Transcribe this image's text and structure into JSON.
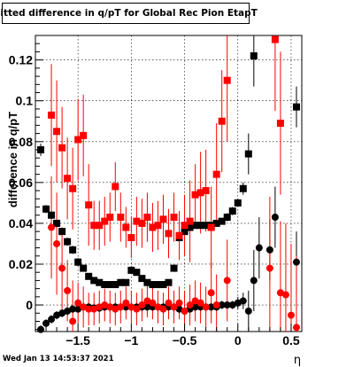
{
  "chart_data": {
    "type": "scatter",
    "title": "Fitted difference in q/pT for Global Rec Pion EtapT",
    "xlabel": "η",
    "ylabel": "difference in q/pT",
    "xlim": [
      -1.9,
      0.6
    ],
    "ylim": [
      -0.013,
      0.132
    ],
    "x_ticks": [
      -1.5,
      -1,
      -0.5,
      0,
      0.5
    ],
    "x_tick_labels": [
      "−1.5",
      "−1",
      "−0.5",
      "0",
      "0.5"
    ],
    "y_ticks": [
      0,
      0.02,
      0.04,
      0.06,
      0.08,
      0.1,
      0.12
    ],
    "y_tick_labels": [
      "0",
      "0.02",
      "0.04",
      "0.06",
      "0.08",
      "0.1",
      "0.12"
    ],
    "grid": true,
    "series": [
      {
        "color": "#000000",
        "marker": "square",
        "x": [
          -1.85,
          -1.8,
          -1.75,
          -1.7,
          -1.65,
          -1.6,
          -1.55,
          -1.5,
          -1.45,
          -1.4,
          -1.35,
          -1.3,
          -1.25,
          -1.2,
          -1.15,
          -1.1,
          -1.05,
          -1.0,
          -0.95,
          -0.9,
          -0.85,
          -0.8,
          -0.75,
          -0.7,
          -0.65,
          -0.6,
          -0.55,
          -0.5,
          -0.45,
          -0.4,
          -0.35,
          -0.3,
          -0.25,
          -0.2,
          -0.15,
          -0.1,
          -0.05,
          0.0,
          0.05,
          0.1,
          0.15,
          0.55
        ],
        "y": [
          0.076,
          0.047,
          0.044,
          0.04,
          0.036,
          0.031,
          0.027,
          0.021,
          0.018,
          0.014,
          0.012,
          0.011,
          0.01,
          0.01,
          0.01,
          0.011,
          0.011,
          0.017,
          0.016,
          0.013,
          0.011,
          0.01,
          0.01,
          0.01,
          0.011,
          0.018,
          0.033,
          0.036,
          0.038,
          0.039,
          0.039,
          0.039,
          0.039,
          0.04,
          0.041,
          0.043,
          0.046,
          0.05,
          0.057,
          0.074,
          0.122,
          0.097
        ],
        "err": [
          0.003,
          0.002,
          0.002,
          0.002,
          0.002,
          0.002,
          0.002,
          0.002,
          0.0015,
          0.0015,
          0.0015,
          0.0015,
          0.0015,
          0.0015,
          0.0015,
          0.0015,
          0.0015,
          0.0015,
          0.0015,
          0.0015,
          0.0015,
          0.0015,
          0.0015,
          0.0015,
          0.0015,
          0.0015,
          0.0015,
          0.0015,
          0.0015,
          0.0015,
          0.0015,
          0.0015,
          0.0015,
          0.0015,
          0.0015,
          0.002,
          0.002,
          0.002,
          0.003,
          0.01,
          0.015,
          0.01
        ]
      },
      {
        "color": "#ff0000",
        "marker": "square",
        "x": [
          -1.75,
          -1.7,
          -1.65,
          -1.6,
          -1.55,
          -1.5,
          -1.45,
          -1.4,
          -1.35,
          -1.3,
          -1.25,
          -1.2,
          -1.15,
          -1.1,
          -1.05,
          -1.0,
          -0.95,
          -0.9,
          -0.85,
          -0.8,
          -0.75,
          -0.7,
          -0.65,
          -0.6,
          -0.55,
          -0.5,
          -0.45,
          -0.4,
          -0.35,
          -0.3,
          -0.25,
          -0.2,
          -0.15,
          -0.1,
          0.35,
          0.4
        ],
        "y": [
          0.093,
          0.085,
          0.077,
          0.062,
          0.057,
          0.081,
          0.083,
          0.049,
          0.039,
          0.039,
          0.041,
          0.043,
          0.058,
          0.043,
          0.038,
          0.033,
          0.041,
          0.04,
          0.043,
          0.038,
          0.039,
          0.042,
          0.035,
          0.043,
          0.034,
          0.039,
          0.041,
          0.054,
          0.055,
          0.056,
          0.038,
          0.064,
          0.09,
          0.11,
          0.13,
          0.089
        ],
        "err": [
          0.025,
          0.025,
          0.02,
          0.02,
          0.02,
          0.02,
          0.02,
          0.02,
          0.012,
          0.012,
          0.012,
          0.012,
          0.012,
          0.012,
          0.01,
          0.01,
          0.012,
          0.012,
          0.012,
          0.012,
          0.012,
          0.012,
          0.012,
          0.012,
          0.012,
          0.015,
          0.02,
          0.015,
          0.02,
          0.02,
          0.02,
          0.025,
          0.025,
          0.03,
          0.035,
          0.035
        ]
      },
      {
        "color": "#000000",
        "marker": "circle",
        "x": [
          -1.85,
          -1.8,
          -1.75,
          -1.7,
          -1.65,
          -1.6,
          -1.55,
          -1.5,
          -1.45,
          -1.4,
          -1.35,
          -1.3,
          -1.25,
          -1.2,
          -1.15,
          -1.1,
          -1.05,
          -1.0,
          -0.95,
          -0.9,
          -0.85,
          -0.8,
          -0.75,
          -0.7,
          -0.65,
          -0.6,
          -0.55,
          -0.5,
          -0.45,
          -0.4,
          -0.35,
          -0.3,
          -0.25,
          -0.2,
          -0.15,
          -0.1,
          -0.05,
          0.0,
          0.05,
          0.1,
          0.15,
          0.2,
          0.3,
          0.35,
          0.55
        ],
        "y": [
          -0.012,
          -0.009,
          -0.007,
          -0.005,
          -0.004,
          -0.003,
          -0.002,
          -0.002,
          -0.001,
          -0.001,
          -0.0015,
          -0.0015,
          -0.001,
          -0.001,
          -0.001,
          -0.001,
          -0.001,
          -0.001,
          -0.001,
          -0.001,
          -0.001,
          -0.001,
          -0.001,
          -0.001,
          -0.001,
          -0.001,
          -0.002,
          -0.003,
          -0.002,
          -0.001,
          -0.001,
          -0.001,
          -0.001,
          -0.001,
          0.0,
          0.0,
          0.0,
          0.001,
          0.002,
          -0.003,
          0.012,
          0.028,
          0.027,
          0.043,
          0.021
        ],
        "err": [
          0.002,
          0.002,
          0.002,
          0.002,
          0.002,
          0.002,
          0.002,
          0.002,
          0.002,
          0.002,
          0.002,
          0.002,
          0.002,
          0.002,
          0.002,
          0.002,
          0.002,
          0.002,
          0.002,
          0.002,
          0.002,
          0.002,
          0.002,
          0.002,
          0.002,
          0.002,
          0.002,
          0.002,
          0.002,
          0.002,
          0.002,
          0.002,
          0.002,
          0.002,
          0.002,
          0.002,
          0.002,
          0.003,
          0.004,
          0.01,
          0.015,
          0.015,
          0.015,
          0.015,
          0.015
        ]
      },
      {
        "color": "#ff0000",
        "marker": "circle",
        "x": [
          -1.75,
          -1.7,
          -1.65,
          -1.6,
          -1.55,
          -1.5,
          -1.45,
          -1.4,
          -1.35,
          -1.3,
          -1.25,
          -1.2,
          -1.15,
          -1.1,
          -1.05,
          -1.0,
          -0.95,
          -0.9,
          -0.85,
          -0.8,
          -0.75,
          -0.7,
          -0.65,
          -0.6,
          -0.55,
          -0.5,
          -0.45,
          -0.4,
          -0.35,
          -0.3,
          -0.25,
          -0.2,
          -0.1,
          0.3,
          0.4,
          0.45,
          0.5,
          0.55
        ],
        "y": [
          0.038,
          0.03,
          0.018,
          0.007,
          -0.008,
          0.001,
          -0.001,
          -0.002,
          -0.002,
          -0.001,
          0.0,
          -0.001,
          -0.002,
          -0.001,
          0.001,
          -0.001,
          -0.002,
          0.0,
          0.002,
          0.001,
          -0.001,
          -0.002,
          0.001,
          -0.001,
          0.001,
          -0.003,
          0.0,
          0.002,
          0.001,
          -0.001,
          0.006,
          0.0,
          0.012,
          0.018,
          0.006,
          0.005,
          -0.005,
          -0.011
        ],
        "err": [
          0.025,
          0.025,
          0.02,
          0.015,
          0.02,
          0.01,
          0.01,
          0.008,
          0.008,
          0.008,
          0.008,
          0.008,
          0.008,
          0.008,
          0.008,
          0.008,
          0.008,
          0.008,
          0.008,
          0.008,
          0.008,
          0.008,
          0.008,
          0.008,
          0.008,
          0.01,
          0.01,
          0.01,
          0.01,
          0.01,
          0.015,
          0.015,
          0.02,
          0.035,
          0.035,
          0.035,
          0.035,
          0.035
        ]
      }
    ]
  },
  "footer_text": "Wed Jan 13 14:53:37 2021"
}
